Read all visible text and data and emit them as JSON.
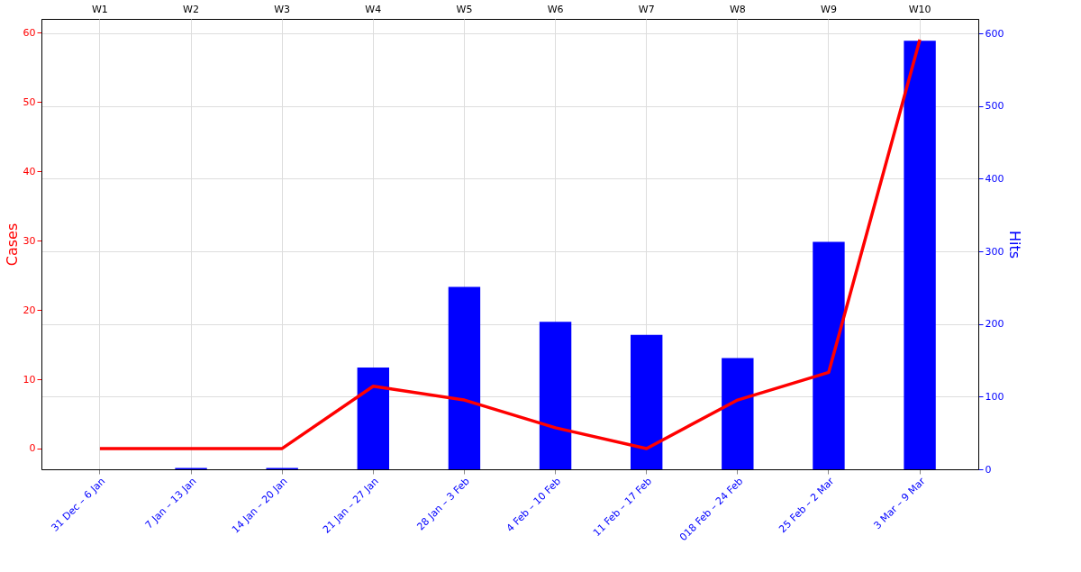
{
  "chart_data": {
    "type": "bar",
    "categories": [
      "31 Dec – 6 Jan",
      "7 Jan – 13 Jan",
      "14 Jan – 20 Jan",
      "21 Jan – 27 Jan",
      "28 Jan – 3 Feb",
      "4 Feb – 10 Feb",
      "11 Feb – 17 Feb",
      "018 Feb – 24 Feb",
      "25 Feb – 2 Mar",
      "3 Mar – 9 Mar"
    ],
    "ylabel": "Cases",
    "y2label": "Hits",
    "ylim": [
      -3,
      62
    ],
    "yticks": [
      0,
      10,
      20,
      30,
      40,
      50,
      60
    ],
    "y2lim": [
      0,
      620
    ],
    "y2ticks": [
      0,
      100,
      200,
      300,
      400,
      500,
      600
    ],
    "annotations": [
      "W1",
      "W2",
      "W3",
      "W4",
      "W5",
      "W6",
      "W7",
      "W8",
      "W9",
      "W10"
    ],
    "grid": true,
    "series": [
      {
        "axis": "y2",
        "color": "#0000ff",
        "values": [
          0,
          2,
          2,
          140,
          251,
          203,
          185,
          153,
          313,
          590
        ]
      },
      {
        "type": "line",
        "axis": "y",
        "color": "#ff0000",
        "line_style": "solid",
        "values": [
          0,
          0,
          0,
          9,
          7,
          3,
          0,
          7,
          11,
          59
        ]
      }
    ]
  }
}
